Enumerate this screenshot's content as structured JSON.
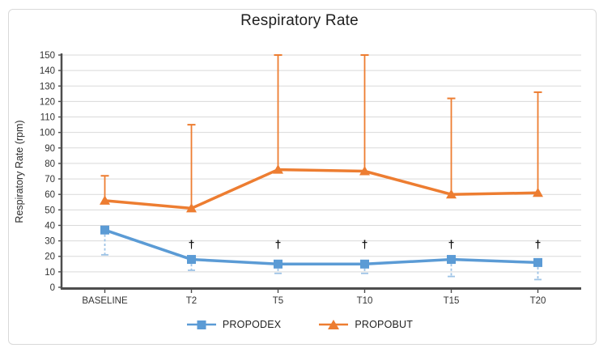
{
  "chart_data": {
    "type": "line",
    "title": "Respiratory Rate",
    "ylabel": "Respiratory Rate (rpm)",
    "xlabel": "",
    "categories": [
      "BASELINE",
      "T2",
      "T5",
      "T10",
      "T15",
      "T20"
    ],
    "ylim": [
      0,
      150
    ],
    "yticks": [
      0,
      10,
      20,
      30,
      40,
      50,
      60,
      70,
      80,
      90,
      100,
      110,
      120,
      130,
      140,
      150
    ],
    "grid": "horizontal",
    "legend_position": "bottom",
    "series": [
      {
        "name": "PROPODEX",
        "marker": "square",
        "color": "#5B9BD5",
        "values": [
          37,
          18,
          15,
          15,
          18,
          16
        ],
        "error_low": [
          21,
          11,
          9,
          9,
          7,
          5
        ],
        "error_direction": "below",
        "error_style": "dashed",
        "error_color": "#9DC3E6"
      },
      {
        "name": "PROPOBUT",
        "marker": "triangle",
        "color": "#ED7D31",
        "values": [
          56,
          51,
          76,
          75,
          60,
          61
        ],
        "error_high": [
          72,
          105,
          150,
          150,
          122,
          126
        ],
        "error_direction": "above",
        "error_style": "solid",
        "error_color": "#ED7D31"
      }
    ],
    "annotations": [
      {
        "symbol": "†",
        "categories": [
          "T2",
          "T5",
          "T10",
          "T15",
          "T20"
        ],
        "value": 28
      }
    ],
    "colors": {
      "grid": "#D9D9D9",
      "axis": "#4d4d4d",
      "tick_text": "#333333",
      "annotation": "#111111"
    }
  }
}
